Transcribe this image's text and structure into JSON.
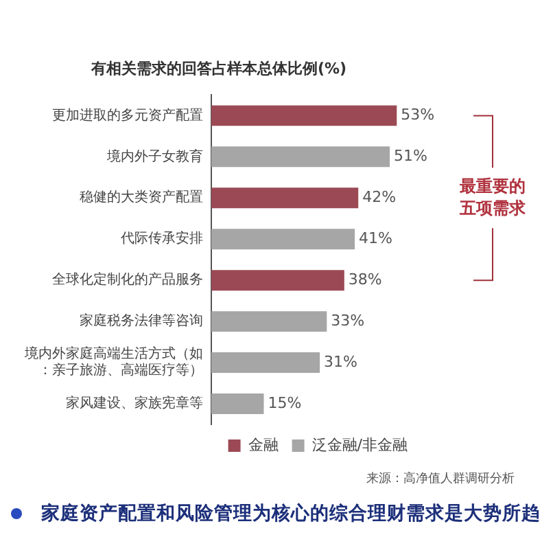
{
  "chart_data": {
    "type": "bar",
    "orientation": "horizontal",
    "stacked": true,
    "title": "有相关需求的回答占样本总体比例(%)",
    "categories": [
      "更加进取的多元资产配置",
      "境内外子女教育",
      "稳健的大类资产配置",
      "代际传承安排",
      "全球化定制化的产品服务",
      "家庭税务法律等咨询",
      "境内外家庭高端生活方式（如：亲子旅游、高端医疗等）",
      "家风建设、家族宪章等"
    ],
    "series": [
      {
        "name": "金融",
        "color": "#9b4a55",
        "values": [
          53,
          null,
          42,
          null,
          38,
          null,
          null,
          null
        ],
        "value_labels": [
          "53%",
          null,
          "42%",
          null,
          "38%",
          null,
          null,
          null
        ]
      },
      {
        "name": "泛金融/非金融",
        "color": "#a6a6a6",
        "values": [
          null,
          51,
          null,
          41,
          null,
          33,
          31,
          15
        ],
        "value_labels": [
          null,
          "51%",
          null,
          "41%",
          null,
          "33%",
          "31%",
          "15%"
        ]
      }
    ],
    "tick_labels": "y",
    "grid": false,
    "legend": "bottom right",
    "annotations": [
      "最重要的五项需求",
      "来源：高净值人群调研分析",
      "家庭资产配置和风险管理为核心的综合理财需求是大势所趋"
    ]
  }
}
